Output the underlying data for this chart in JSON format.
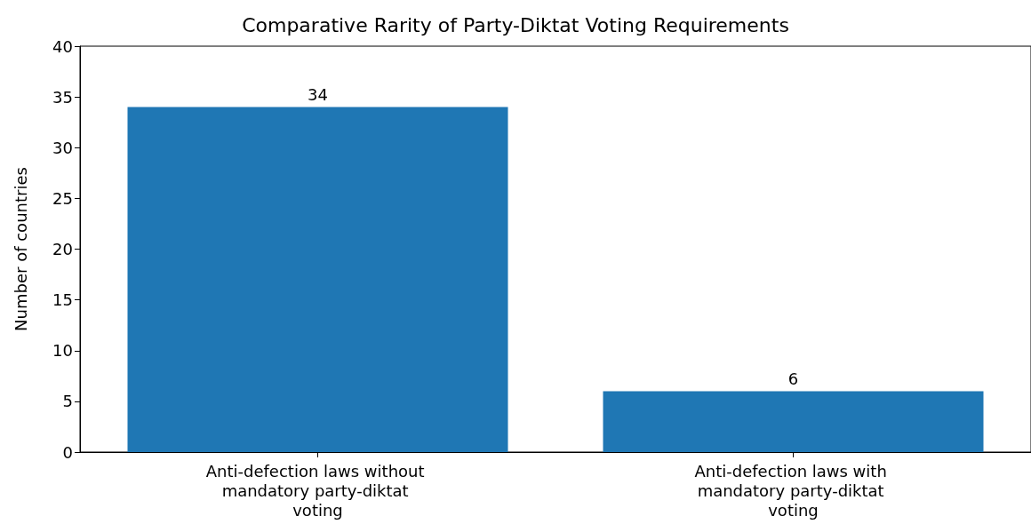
{
  "chart_data": {
    "type": "bar",
    "title": "Comparative Rarity of Party-Diktat Voting Requirements",
    "ylabel": "Number of countries",
    "categories": [
      "Anti-defection laws without mandatory party-diktat voting",
      "Anti-defection laws with mandatory party-diktat voting"
    ],
    "values": [
      34,
      6
    ],
    "color": "#1f77b4",
    "ylim": [
      0,
      40
    ],
    "yticks": [
      0,
      5,
      10,
      15,
      20,
      25,
      30,
      35,
      40
    ],
    "grid": false,
    "data_labels": true
  }
}
